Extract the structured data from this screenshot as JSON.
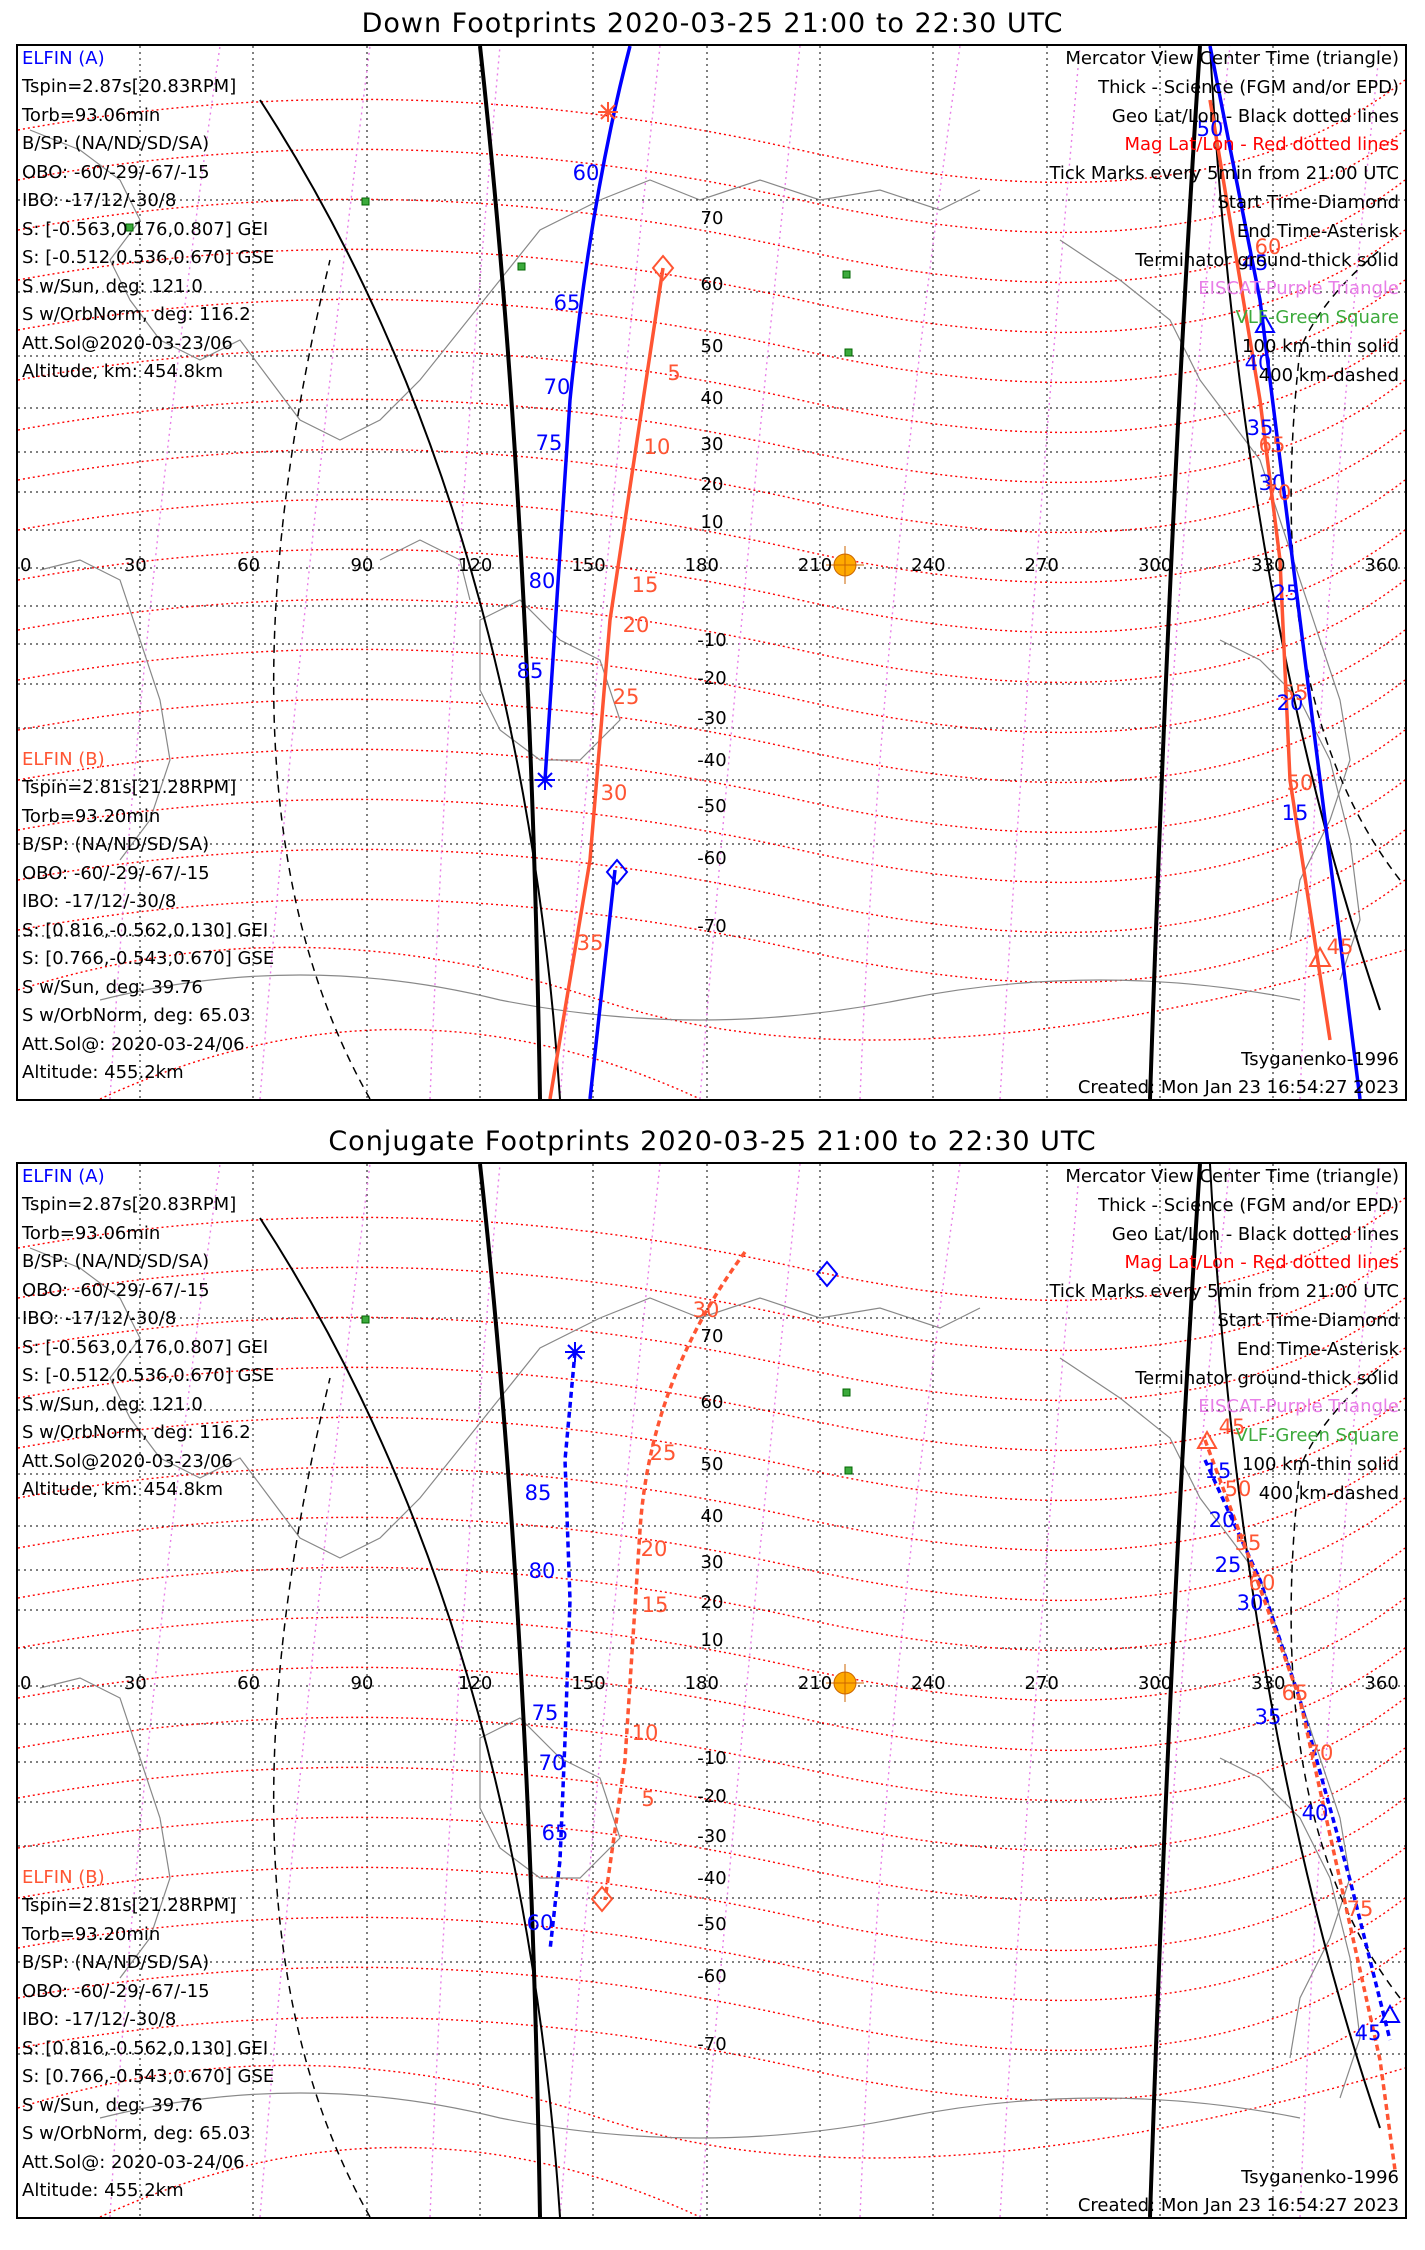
{
  "panels": [
    {
      "title": "Down Footprints 2020-03-25 21:00 to 22:30 UTC",
      "elfin_a": {
        "name": "ELFIN (A)",
        "lines": [
          "Tspin=2.87s[20.83RPM]",
          "Torb=93.06min",
          "B/SP: (NA/ND/SD/SA)",
          "OBO: -60/-29/-67/-15",
          "IBO: -17/12/-30/8",
          "S: [-0.563,0.176,0.807] GEI",
          "S: [-0.512,0.536,0.670] GSE",
          "S w/Sun, deg: 121.0",
          "S w/OrbNorm, deg: 116.2",
          "Att.Sol@2020-03-23/06",
          "Altitude, km: 454.8km"
        ]
      },
      "elfin_b": {
        "name": "ELFIN (B)",
        "lines": [
          "Tspin=2.81s[21.28RPM]",
          "Torb=93.20min",
          "B/SP: (NA/ND/SD/SA)",
          "OBO: -60/-29/-67/-15",
          "IBO: -17/12/-30/8",
          "S: [0.816,-0.562,0.130] GEI",
          "S: [0.766,-0.543,0.670] GSE",
          "S w/Sun, deg: 39.76",
          "S w/OrbNorm, deg: 65.03",
          "Att.Sol@: 2020-03-24/06",
          "Altitude: 455.2km"
        ]
      },
      "legend": [
        {
          "text": "Mercator View Center Time (triangle)",
          "color": "#000000"
        },
        {
          "text": "Thick - Science (FGM and/or EPD)",
          "color": "#000000"
        },
        {
          "text": "Geo Lat/Lon - Black dotted lines",
          "color": "#000000"
        },
        {
          "text": "Mag Lat/Lon - Red dotted lines",
          "color": "#ff0000"
        },
        {
          "text": "Tick Marks every 5min from 21:00 UTC",
          "color": "#000000"
        },
        {
          "text": "Start Time-Diamond",
          "color": "#000000"
        },
        {
          "text": "End Time-Asterisk",
          "color": "#000000"
        },
        {
          "text": "Terminator ground-thick solid",
          "color": "#000000"
        },
        {
          "text": "EISCAT-Purple Triangle",
          "color": "#e87ee8"
        },
        {
          "text": "VLF-Green Square",
          "color": "#3caa3c"
        },
        {
          "text": "100 km-thin solid",
          "color": "#000000"
        },
        {
          "text": "400 km-dashed",
          "color": "#000000"
        }
      ],
      "footer_left": "Tsyganenko-1996",
      "footer_right": "Created: Mon Jan 23 16:54:27 2023",
      "lon_ticks": [
        "0",
        "30",
        "60",
        "90",
        "120",
        "150",
        "180",
        "210",
        "240",
        "270",
        "300",
        "330",
        "360"
      ],
      "lat_ticks": [
        "70",
        "60",
        "50",
        "40",
        "30",
        "20",
        "10",
        "-10",
        "-20",
        "-30",
        "-40",
        "-50",
        "-60",
        "-70"
      ],
      "a_ticks": [
        "50",
        "45",
        "40",
        "35",
        "30",
        "25",
        "20",
        "15",
        "60",
        "65",
        "70",
        "75",
        "80",
        "85"
      ],
      "b_ticks": [
        "5",
        "10",
        "15",
        "20",
        "25",
        "30",
        "35",
        "60",
        "65",
        "70",
        "55",
        "50",
        "45"
      ]
    },
    {
      "title": "Conjugate Footprints 2020-03-25 21:00 to 22:30 UTC",
      "elfin_a": {
        "name": "ELFIN (A)",
        "lines": [
          "Tspin=2.87s[20.83RPM]",
          "Torb=93.06min",
          "B/SP: (NA/ND/SD/SA)",
          "OBO: -60/-29/-67/-15",
          "IBO: -17/12/-30/8",
          "S: [-0.563,0.176,0.807] GEI",
          "S: [-0.512,0.536,0.670] GSE",
          "S w/Sun, deg: 121.0",
          "S w/OrbNorm, deg: 116.2",
          "Att.Sol@2020-03-23/06",
          "Altitude, km: 454.8km"
        ]
      },
      "elfin_b": {
        "name": "ELFIN (B)",
        "lines": [
          "Tspin=2.81s[21.28RPM]",
          "Torb=93.20min",
          "B/SP: (NA/ND/SD/SA)",
          "OBO: -60/-29/-67/-15",
          "IBO: -17/12/-30/8",
          "S: [0.816,-0.562,0.130] GEI",
          "S: [0.766,-0.543,0.670] GSE",
          "S w/Sun, deg: 39.76",
          "S w/OrbNorm, deg: 65.03",
          "Att.Sol@: 2020-03-24/06",
          "Altitude: 455.2km"
        ]
      },
      "legend": [
        {
          "text": "Mercator View Center Time (triangle)",
          "color": "#000000"
        },
        {
          "text": "Thick - Science (FGM and/or EPD)",
          "color": "#000000"
        },
        {
          "text": "Geo Lat/Lon - Black dotted lines",
          "color": "#000000"
        },
        {
          "text": "Mag Lat/Lon - Red dotted lines",
          "color": "#ff0000"
        },
        {
          "text": "Tick Marks every 5min from 21:00 UTC",
          "color": "#000000"
        },
        {
          "text": "Start Time-Diamond",
          "color": "#000000"
        },
        {
          "text": "End Time-Asterisk",
          "color": "#000000"
        },
        {
          "text": "Terminator ground-thick solid",
          "color": "#000000"
        },
        {
          "text": "EISCAT-Purple Triangle",
          "color": "#e87ee8"
        },
        {
          "text": "VLF-Green Square",
          "color": "#3caa3c"
        },
        {
          "text": "100 km-thin solid",
          "color": "#000000"
        },
        {
          "text": "400 km-dashed",
          "color": "#000000"
        }
      ],
      "footer_left": "Tsyganenko-1996",
      "footer_right": "Created: Mon Jan 23 16:54:27 2023",
      "lon_ticks": [
        "0",
        "30",
        "60",
        "90",
        "120",
        "150",
        "180",
        "210",
        "240",
        "270",
        "300",
        "330",
        "360"
      ],
      "lat_ticks": [
        "70",
        "60",
        "50",
        "40",
        "30",
        "20",
        "10",
        "-10",
        "-20",
        "-30",
        "-40",
        "-50",
        "-60",
        "-70"
      ],
      "a_ticks": [
        "85",
        "80",
        "75",
        "70",
        "65",
        "60",
        "15",
        "20",
        "25",
        "30",
        "35",
        "40",
        "45"
      ],
      "b_ticks": [
        "30",
        "25",
        "20",
        "15",
        "10",
        "5",
        "45",
        "50",
        "55",
        "60",
        "65",
        "70",
        "75"
      ]
    }
  ],
  "colors": {
    "elfin_a": "#0000ff",
    "elfin_b": "#ff5533",
    "mag_grid": "#ff0000",
    "geo_grid": "#000000",
    "eiscat": "#e87ee8",
    "vlf": "#3caa3c",
    "sun": "#ffaa00",
    "coast": "#888888"
  }
}
